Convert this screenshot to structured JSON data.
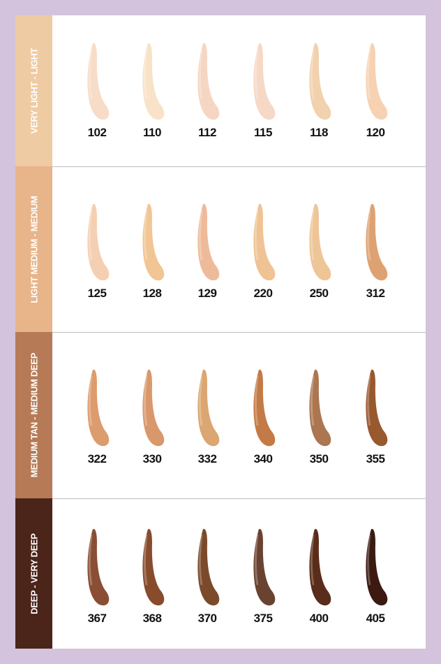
{
  "groups": [
    {
      "label": "VERY LIGHT - LIGHT",
      "color": "#efcba3",
      "shades": [
        {
          "code": "102",
          "color": "#f7dcc8"
        },
        {
          "code": "110",
          "color": "#f8e2c8"
        },
        {
          "code": "112",
          "color": "#f5d6c2"
        },
        {
          "code": "115",
          "color": "#f6d8c6"
        },
        {
          "code": "118",
          "color": "#f2d1ae"
        },
        {
          "code": "120",
          "color": "#f6d2b2"
        }
      ]
    },
    {
      "label": "LIGHT MEDIUM - MEDIUM",
      "color": "#e8b48a",
      "shades": [
        {
          "code": "125",
          "color": "#f5cfb2"
        },
        {
          "code": "128",
          "color": "#f1c694"
        },
        {
          "code": "129",
          "color": "#eebb9a"
        },
        {
          "code": "220",
          "color": "#efc393"
        },
        {
          "code": "250",
          "color": "#eec597"
        },
        {
          "code": "312",
          "color": "#dea272"
        }
      ]
    },
    {
      "label": "MEDIUM TAN - MEDIUM DEEP",
      "color": "#b67b56",
      "shades": [
        {
          "code": "322",
          "color": "#dc9c6e"
        },
        {
          "code": "330",
          "color": "#d9986c"
        },
        {
          "code": "332",
          "color": "#dba671"
        },
        {
          "code": "340",
          "color": "#c47a46"
        },
        {
          "code": "350",
          "color": "#ab7650"
        },
        {
          "code": "355",
          "color": "#98592f"
        }
      ]
    },
    {
      "label": "DEEP - VERY DEEP",
      "color": "#4b241a",
      "shades": [
        {
          "code": "367",
          "color": "#8a4e34"
        },
        {
          "code": "368",
          "color": "#884c2c"
        },
        {
          "code": "370",
          "color": "#7a4a2a"
        },
        {
          "code": "375",
          "color": "#6a4230"
        },
        {
          "code": "400",
          "color": "#5a2c1a"
        },
        {
          "code": "405",
          "color": "#3c1a12"
        }
      ]
    }
  ]
}
